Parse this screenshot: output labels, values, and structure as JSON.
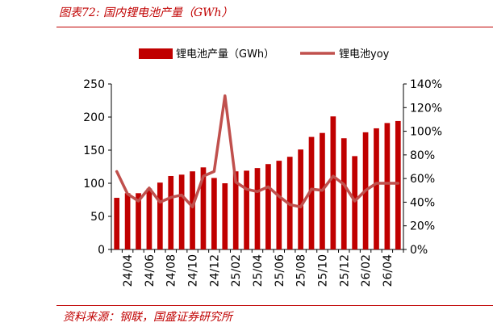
{
  "figure": {
    "title": "图表72:  国内锂电池产量（GWh）",
    "source": "资料来源：钢联，国盛证券研究所"
  },
  "colors": {
    "bar": "#c00000",
    "line": "#c0504d",
    "accent": "#c00000"
  },
  "chart_data": {
    "type": "bar",
    "title": "",
    "xlabel": "",
    "ylabel": "",
    "categories": [
      "24/03",
      "24/04",
      "24/05",
      "24/06",
      "24/07",
      "24/08",
      "24/09",
      "24/10",
      "24/11",
      "24/12",
      "25/01",
      "25/02",
      "25/03",
      "25/04",
      "25/05",
      "25/06",
      "25/07",
      "25/08",
      "25/09",
      "25/10",
      "25/11",
      "25/12",
      "26/01",
      "26/02",
      "26/03",
      "26/04",
      "26/05"
    ],
    "tick_labels": [
      "24/04",
      "24/06",
      "24/08",
      "24/10",
      "24/12",
      "25/02",
      "25/04",
      "25/06",
      "25/08",
      "25/10",
      "25/12",
      "26/02",
      "26/04"
    ],
    "series": [
      {
        "name": "锂电池产量（GWh）",
        "axis": "left",
        "type": "bar",
        "values": [
          78,
          85,
          85,
          92,
          101,
          111,
          113,
          118,
          124,
          108,
          100,
          118,
          119,
          123,
          129,
          134,
          140,
          151,
          170,
          176,
          201,
          168,
          141,
          177,
          183,
          191,
          194
        ]
      },
      {
        "name": "锂电池yoy",
        "axis": "right",
        "type": "line",
        "values": [
          0.66,
          0.47,
          0.41,
          0.52,
          0.4,
          0.44,
          0.46,
          0.36,
          0.62,
          0.66,
          1.3,
          0.57,
          0.51,
          0.49,
          0.53,
          0.45,
          0.38,
          0.36,
          0.51,
          0.5,
          0.62,
          0.55,
          0.41,
          0.5,
          0.56,
          0.56,
          0.56
        ]
      }
    ],
    "y_left": {
      "min": 0,
      "max": 250,
      "ticks": [
        0,
        50,
        100,
        150,
        200,
        250
      ],
      "tick_labels": [
        "0",
        "50",
        "100",
        "150",
        "200",
        "250"
      ]
    },
    "y_right": {
      "min": 0,
      "max": 1.4,
      "ticks": [
        0,
        0.2,
        0.4,
        0.6,
        0.8,
        1.0,
        1.2,
        1.4
      ],
      "tick_labels": [
        "0%",
        "20%",
        "40%",
        "60%",
        "80%",
        "100%",
        "120%",
        "140%"
      ]
    },
    "legend_placement": "top-center",
    "grid": false
  }
}
